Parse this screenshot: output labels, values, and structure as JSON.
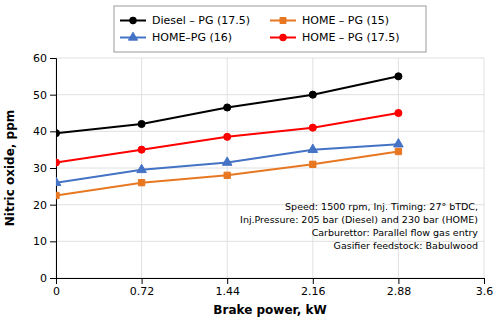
{
  "chart_data": {
    "type": "line",
    "x": [
      0,
      0.72,
      1.44,
      2.16,
      2.88
    ],
    "series": [
      {
        "name": "Diesel – PG (17.5)",
        "color": "#000000",
        "marker": "circle",
        "values": [
          39.5,
          42.0,
          46.5,
          50.0,
          55.0
        ]
      },
      {
        "name": "HOME – PG (15)",
        "color": "#E87722",
        "marker": "square",
        "values": [
          22.5,
          26.0,
          28.0,
          31.0,
          34.5
        ]
      },
      {
        "name": "HOME–PG (16)",
        "color": "#4472C4",
        "marker": "triangle",
        "values": [
          26.0,
          29.5,
          31.5,
          35.0,
          36.5
        ]
      },
      {
        "name": "HOME – PG (17.5)",
        "color": "#FF0000",
        "marker": "circle",
        "values": [
          31.5,
          35.0,
          38.5,
          41.0,
          45.0
        ]
      }
    ],
    "xlabel": "Brake power, kW",
    "ylabel": "Nitric oxide, ppm",
    "xlim": [
      0,
      3.6
    ],
    "ylim": [
      0,
      60
    ],
    "xticks": [
      0,
      0.72,
      1.44,
      2.16,
      2.88,
      3.6
    ],
    "yticks": [
      0,
      10,
      20,
      30,
      40,
      50,
      60
    ],
    "annotations": [
      "Speed: 1500 rpm, Inj. Timing: 27° bTDC,",
      "Inj.Pressure: 205 bar (Diesel) and 230 bar (HOME)",
      "Carburettor: Parallel flow gas entry",
      "Gasifier feedstock: Babulwood"
    ],
    "grid": true,
    "legend": "top"
  }
}
